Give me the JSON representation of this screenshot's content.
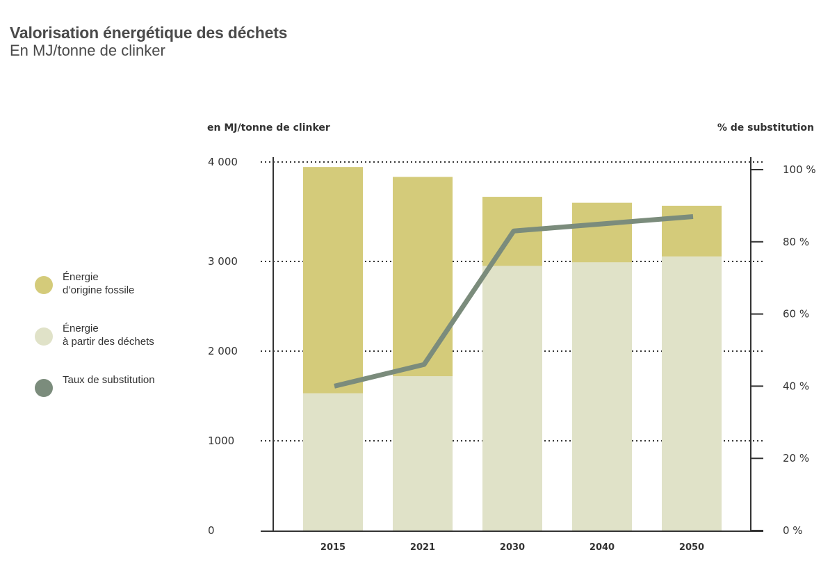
{
  "header": {
    "title": "Valorisation énergétique des déchets",
    "subtitle": "En MJ/tonne de clinker"
  },
  "legend": {
    "items": [
      {
        "label": "Énergie\nd’origine fossile",
        "color": "#d4cb7a"
      },
      {
        "label": "Énergie\nà partir des déchets",
        "color": "#e0e2c8"
      },
      {
        "label": "Taux de substitution",
        "color": "#7b8c7c"
      }
    ]
  },
  "chart_data": {
    "type": "bar",
    "stacked": true,
    "categories": [
      "2015",
      "2021",
      "2030",
      "2040",
      "2050"
    ],
    "series": [
      {
        "name": "Énergie à partir des déchets",
        "values": [
          1530,
          1720,
          2950,
          2990,
          3050
        ],
        "color": "#e0e2c8"
      },
      {
        "name": "Énergie d’origine fossile",
        "values": [
          2420,
          2130,
          700,
          600,
          510
        ],
        "color": "#d4cb7a"
      }
    ],
    "line_series": {
      "name": "Taux de substitution",
      "values": [
        40,
        46,
        83,
        85,
        87
      ],
      "color": "#7b8c7c",
      "axis": "right"
    },
    "ylabel_left": "en MJ/tonne de clinker",
    "ylabel_right": "% de substitution",
    "left_ticks": [
      {
        "value": 0,
        "label": "0"
      },
      {
        "value": 1000,
        "label": "1000"
      },
      {
        "value": 2000,
        "label": "2 000"
      },
      {
        "value": 3000,
        "label": "3 000"
      },
      {
        "value": 4000,
        "label": "4 000"
      }
    ],
    "right_ticks": [
      {
        "value": 0,
        "label": "0 %"
      },
      {
        "value": 20,
        "label": "20 %"
      },
      {
        "value": 40,
        "label": "40 %"
      },
      {
        "value": 60,
        "label": "60 %"
      },
      {
        "value": 80,
        "label": "80 %"
      },
      {
        "value": 100,
        "label": "100 %"
      }
    ],
    "ylim_left": [
      0,
      4000
    ],
    "ylim_right": [
      0,
      100
    ],
    "grid": true,
    "legend_position": "left"
  }
}
